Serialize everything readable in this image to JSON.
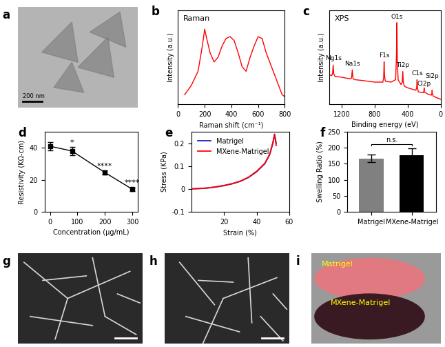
{
  "chart_data": [
    {
      "panel": "b",
      "type": "line",
      "annotation": "Raman",
      "x": [
        50,
        100,
        150,
        180,
        200,
        215,
        240,
        270,
        300,
        330,
        360,
        390,
        420,
        450,
        480,
        510,
        540,
        570,
        600,
        630,
        660,
        700,
        740,
        780,
        800
      ],
      "values": [
        0.1,
        0.2,
        0.35,
        0.6,
        0.8,
        0.7,
        0.55,
        0.45,
        0.5,
        0.62,
        0.7,
        0.72,
        0.68,
        0.55,
        0.4,
        0.35,
        0.5,
        0.62,
        0.72,
        0.7,
        0.55,
        0.4,
        0.25,
        0.1,
        0.08
      ],
      "color": "#ff0000",
      "xlabel": "Raman shift (cm⁻¹)",
      "ylabel": "Intensity (a.u.)",
      "xlim": [
        0,
        800
      ],
      "xticks": [
        0,
        200,
        400,
        600,
        800
      ],
      "ylim": [
        0,
        1
      ],
      "yticks": [],
      "tick_labels": "x"
    },
    {
      "panel": "c",
      "type": "line",
      "annotation": "XPS",
      "x": [
        1350,
        1320,
        1310,
        1303,
        1296,
        1280,
        1200,
        1100,
        1080,
        1071,
        1062,
        1040,
        950,
        800,
        700,
        690,
        685,
        680,
        670,
        600,
        545,
        535,
        530,
        525,
        515,
        480,
        465,
        458,
        452,
        440,
        400,
        300,
        290,
        285,
        280,
        270,
        210,
        202,
        199,
        196,
        150,
        110,
        104,
        102,
        100,
        90,
        50,
        0
      ],
      "values": [
        0.36,
        0.35,
        0.38,
        0.48,
        0.37,
        0.34,
        0.33,
        0.31,
        0.32,
        0.42,
        0.31,
        0.3,
        0.29,
        0.27,
        0.27,
        0.33,
        0.52,
        0.35,
        0.28,
        0.27,
        0.3,
        0.6,
        1.0,
        0.55,
        0.3,
        0.24,
        0.27,
        0.4,
        0.27,
        0.22,
        0.2,
        0.17,
        0.2,
        0.3,
        0.2,
        0.15,
        0.14,
        0.16,
        0.2,
        0.15,
        0.12,
        0.11,
        0.13,
        0.17,
        0.13,
        0.1,
        0.08,
        0.06
      ],
      "peak_labels": [
        {
          "text": "Mg1s",
          "x": 1303,
          "y": 0.52
        },
        {
          "text": "Na1s",
          "x": 1071,
          "y": 0.46
        },
        {
          "text": "F1s",
          "x": 685,
          "y": 0.56
        },
        {
          "text": "O1s",
          "x": 530,
          "y": 1.03
        },
        {
          "text": "Ti2p",
          "x": 458,
          "y": 0.44
        },
        {
          "text": "C1s",
          "x": 285,
          "y": 0.34
        },
        {
          "text": "Cl2p",
          "x": 199,
          "y": 0.21
        },
        {
          "text": "Si2p",
          "x": 102,
          "y": 0.3
        }
      ],
      "color": "#ff0000",
      "xlabel": "Binding energy (eV)",
      "ylabel": "Intensity (a.u.)",
      "xlim": [
        1350,
        0
      ],
      "xticks": [
        1200,
        800,
        400,
        0
      ],
      "ylim": [
        0,
        1.15
      ],
      "yticks": [],
      "tick_labels": "x"
    },
    {
      "panel": "d",
      "type": "line",
      "x": [
        0,
        80,
        200,
        300
      ],
      "values": [
        41,
        38,
        24.5,
        14
      ],
      "errors": [
        2.5,
        2.5,
        1.2,
        1.2
      ],
      "significance": [
        null,
        "*",
        "****",
        "****"
      ],
      "marker": "square",
      "color": "#000000",
      "xlabel": "Concentration (μg/mL)",
      "ylabel": "Resistivity (KΩ-cm)",
      "xlim": [
        -20,
        320
      ],
      "xticks": [
        0,
        100,
        200,
        300
      ],
      "ylim": [
        0,
        50
      ],
      "yticks": [
        0,
        20,
        40
      ]
    },
    {
      "panel": "e",
      "type": "line",
      "legend": "upper left",
      "x": [
        0,
        5,
        10,
        15,
        20,
        25,
        30,
        35,
        40,
        45,
        48,
        50,
        51,
        52
      ],
      "series": [
        {
          "name": "Matrigel",
          "color": "#1f1fbf",
          "values": [
            0,
            0.002,
            0.004,
            0.008,
            0.014,
            0.022,
            0.033,
            0.05,
            0.075,
            0.11,
            0.15,
            0.2,
            0.24,
            0.2
          ]
        },
        {
          "name": "MXene-Matrigel",
          "color": "#ff0000",
          "values": [
            0,
            0.001,
            0.004,
            0.009,
            0.015,
            0.023,
            0.034,
            0.051,
            0.077,
            0.112,
            0.152,
            0.205,
            0.238,
            0.19
          ]
        }
      ],
      "xlabel": "Strain (%)",
      "ylabel": "Stress (KPa)",
      "xlim": [
        0,
        60
      ],
      "xticks": [
        20,
        40,
        60
      ],
      "ylim": [
        -0.1,
        0.25
      ],
      "yticks": [
        -0.1,
        0,
        0.1,
        0.2
      ]
    },
    {
      "panel": "f",
      "type": "bar",
      "annotation": "n.s.",
      "categories": [
        "Matrigel",
        "MXene-Matrigel"
      ],
      "values": [
        167,
        176
      ],
      "errors": [
        12,
        23
      ],
      "colors": [
        "#808080",
        "#000000"
      ],
      "ylabel": "Swelling Ratio (%)",
      "ylim": [
        0,
        250
      ],
      "yticks": [
        0,
        50,
        100,
        150,
        200,
        250
      ]
    }
  ],
  "images": [
    {
      "panel": "a",
      "scale_bar": "200 nm"
    },
    {
      "panel": "g"
    },
    {
      "panel": "h"
    },
    {
      "panel": "i",
      "labels": [
        "Matrigel",
        "MXene-Matrigel"
      ]
    }
  ]
}
